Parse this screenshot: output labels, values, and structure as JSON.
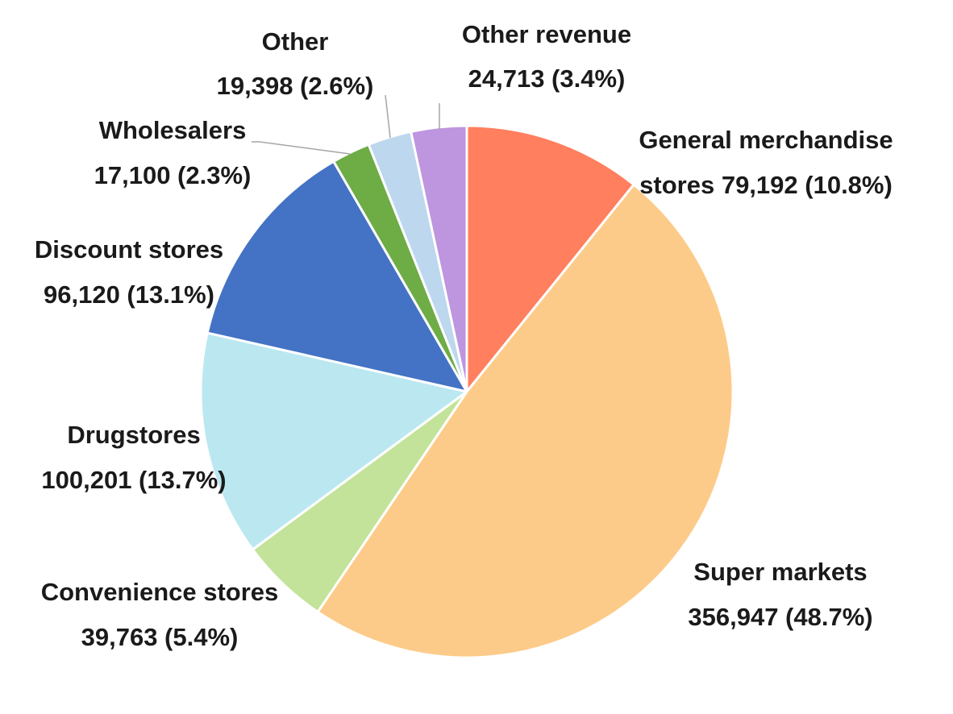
{
  "chart_data": {
    "type": "pie",
    "title": "",
    "legend": "none",
    "start_angle": "12 o'clock",
    "direction": "clockwise",
    "slices": [
      {
        "name": "General merchandise stores",
        "value": 79192,
        "percent": 10.8,
        "color": "#ff7f5e",
        "label_lines": [
          "General merchandise",
          "stores 79,192 (10.8%)"
        ]
      },
      {
        "name": "Super markets",
        "value": 356947,
        "percent": 48.7,
        "color": "#fdcb89",
        "label_lines": [
          "Super markets",
          "356,947 (48.7%)"
        ]
      },
      {
        "name": "Convenience stores",
        "value": 39763,
        "percent": 5.4,
        "color": "#c2e399",
        "label_lines": [
          "Convenience stores",
          "39,763 (5.4%)"
        ]
      },
      {
        "name": "Drugstores",
        "value": 100201,
        "percent": 13.7,
        "color": "#bbe8f0",
        "label_lines": [
          "Drugstores",
          "100,201 (13.7%)"
        ]
      },
      {
        "name": "Discount stores",
        "value": 96120,
        "percent": 13.1,
        "color": "#4472c4",
        "label_lines": [
          "Discount stores",
          "96,120 (13.1%)"
        ]
      },
      {
        "name": "Wholesalers",
        "value": 17100,
        "percent": 2.3,
        "color": "#6eac46",
        "label_lines": [
          "Wholesalers",
          "17,100 (2.3%)"
        ]
      },
      {
        "name": "Other",
        "value": 19398,
        "percent": 2.6,
        "color": "#bdd7ee",
        "label_lines": [
          "Other",
          "19,398 (2.6%)"
        ]
      },
      {
        "name": "Other revenue",
        "value": 24713,
        "percent": 3.4,
        "color": "#be95df",
        "label_lines": [
          "Other revenue",
          "24,713 (3.4%)"
        ]
      }
    ]
  }
}
